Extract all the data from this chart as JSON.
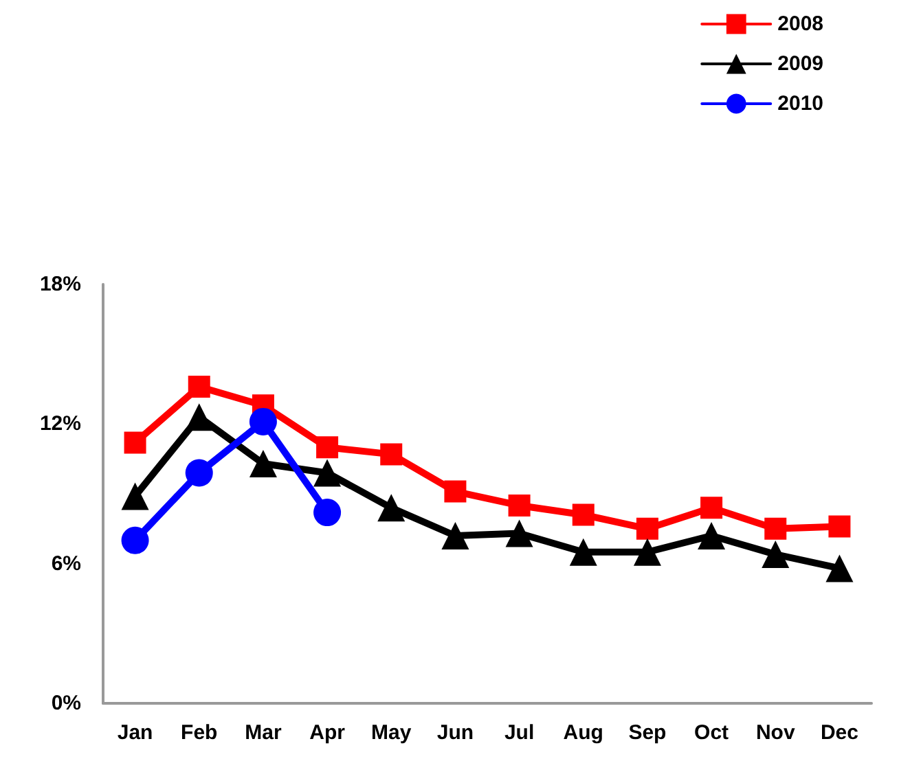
{
  "chart_data": {
    "type": "line",
    "categories": [
      "Jan",
      "Feb",
      "Mar",
      "Apr",
      "May",
      "Jun",
      "Jul",
      "Aug",
      "Sep",
      "Oct",
      "Nov",
      "Dec"
    ],
    "series": [
      {
        "name": "2008",
        "color": "#ff0000",
        "marker": "square",
        "values": [
          11.2,
          13.6,
          12.8,
          11.0,
          10.7,
          9.1,
          8.5,
          8.1,
          7.5,
          8.4,
          7.5,
          7.6
        ]
      },
      {
        "name": "2009",
        "color": "#000000",
        "marker": "triangle",
        "values": [
          8.9,
          12.3,
          10.3,
          9.9,
          8.4,
          7.2,
          7.3,
          6.5,
          6.5,
          7.2,
          6.4,
          5.8
        ]
      },
      {
        "name": "2010",
        "color": "#0000ff",
        "marker": "circle",
        "values": [
          7.0,
          9.9,
          12.1,
          8.2,
          null,
          null,
          null,
          null,
          null,
          null,
          null,
          null
        ]
      }
    ],
    "ylim": [
      0,
      18
    ],
    "yticks": [
      {
        "value": 0,
        "label": "0%"
      },
      {
        "value": 6,
        "label": "6%"
      },
      {
        "value": 12,
        "label": "12%"
      },
      {
        "value": 18,
        "label": "18%"
      }
    ],
    "grid": false,
    "legend": "top right",
    "line_style": "solid"
  }
}
